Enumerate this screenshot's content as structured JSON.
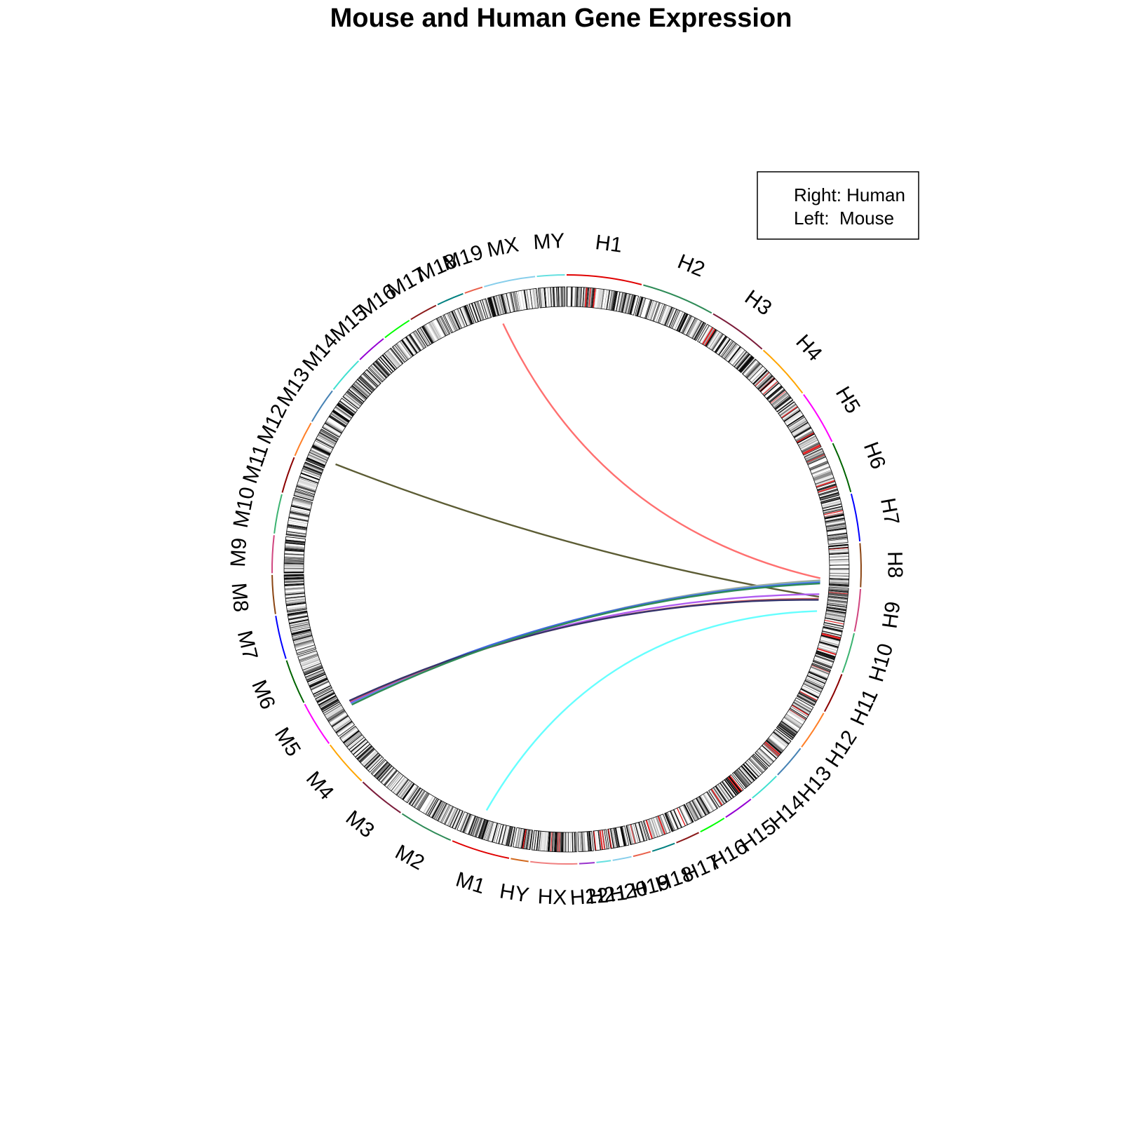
{
  "chart_data": {
    "type": "circos",
    "title": "Mouse and Human Gene Expression",
    "legend": {
      "placement": "top-right",
      "entries": [
        "Right: Human",
        "Left:  Mouse"
      ]
    },
    "segment_order_clockwise_from_top": [
      "H1",
      "H2",
      "H3",
      "H4",
      "H5",
      "H6",
      "H7",
      "H8",
      "H9",
      "H10",
      "H11",
      "H12",
      "H13",
      "H14",
      "H15",
      "H16",
      "H17",
      "H18",
      "H19",
      "H20",
      "H21",
      "H22",
      "HX",
      "HY",
      "M1",
      "M2",
      "M3",
      "M4",
      "M5",
      "M6",
      "M7",
      "M8",
      "M9",
      "M10",
      "M11",
      "M12",
      "M13",
      "M14",
      "M15",
      "M16",
      "M17",
      "M18",
      "M19",
      "MX",
      "MY"
    ],
    "segments": [
      {
        "name": "H1",
        "size": 249,
        "color": "#e00000"
      },
      {
        "name": "H2",
        "size": 243,
        "color": "#2e8b57"
      },
      {
        "name": "H3",
        "size": 198,
        "color": "#7b1c3a"
      },
      {
        "name": "H4",
        "size": 191,
        "color": "#ffa500"
      },
      {
        "name": "H5",
        "size": 181,
        "color": "#ff00ff"
      },
      {
        "name": "H6",
        "size": 171,
        "color": "#006400"
      },
      {
        "name": "H7",
        "size": 159,
        "color": "#0000ff"
      },
      {
        "name": "H8",
        "size": 145,
        "color": "#8b4513"
      },
      {
        "name": "H9",
        "size": 141,
        "color": "#d0457f"
      },
      {
        "name": "H10",
        "size": 135,
        "color": "#3cb371"
      },
      {
        "name": "H11",
        "size": 135,
        "color": "#8b0000"
      },
      {
        "name": "H12",
        "size": 133,
        "color": "#ff7f27"
      },
      {
        "name": "H13",
        "size": 115,
        "color": "#4682b4"
      },
      {
        "name": "H14",
        "size": 107,
        "color": "#40e0d0"
      },
      {
        "name": "H15",
        "size": 102,
        "color": "#9400d3"
      },
      {
        "name": "H16",
        "size": 90,
        "color": "#00ff00"
      },
      {
        "name": "H17",
        "size": 81,
        "color": "#8b1a1a"
      },
      {
        "name": "H18",
        "size": 78,
        "color": "#008080"
      },
      {
        "name": "H19",
        "size": 59,
        "color": "#e9604a"
      },
      {
        "name": "H20",
        "size": 63,
        "color": "#87ceeb"
      },
      {
        "name": "H21",
        "size": 48,
        "color": "#66e0e0"
      },
      {
        "name": "H22",
        "size": 51,
        "color": "#9932cc"
      },
      {
        "name": "HX",
        "size": 155,
        "color": "#f08080"
      },
      {
        "name": "HY",
        "size": 59,
        "color": "#d2691e"
      },
      {
        "name": "M1",
        "size": 195,
        "color": "#e00000"
      },
      {
        "name": "M2",
        "size": 182,
        "color": "#2e8b57"
      },
      {
        "name": "M3",
        "size": 160,
        "color": "#7b1c3a"
      },
      {
        "name": "M4",
        "size": 157,
        "color": "#ffa500"
      },
      {
        "name": "M5",
        "size": 152,
        "color": "#ff00ff"
      },
      {
        "name": "M6",
        "size": 150,
        "color": "#006400"
      },
      {
        "name": "M7",
        "size": 145,
        "color": "#0000ff"
      },
      {
        "name": "M8",
        "size": 129,
        "color": "#8b4513"
      },
      {
        "name": "M9",
        "size": 125,
        "color": "#d0457f"
      },
      {
        "name": "M10",
        "size": 131,
        "color": "#3cb371"
      },
      {
        "name": "M11",
        "size": 122,
        "color": "#8b0000"
      },
      {
        "name": "M12",
        "size": 120,
        "color": "#ff7f27"
      },
      {
        "name": "M13",
        "size": 121,
        "color": "#4682b4"
      },
      {
        "name": "M14",
        "size": 125,
        "color": "#40e0d0"
      },
      {
        "name": "M15",
        "size": 104,
        "color": "#9400d3"
      },
      {
        "name": "M16",
        "size": 98,
        "color": "#00ff00"
      },
      {
        "name": "M17",
        "size": 95,
        "color": "#8b1a1a"
      },
      {
        "name": "M18",
        "size": 91,
        "color": "#008080"
      },
      {
        "name": "M19",
        "size": 61,
        "color": "#e9604a"
      },
      {
        "name": "MX",
        "size": 171,
        "color": "#87ceeb"
      },
      {
        "name": "MY",
        "size": 92,
        "color": "#66e0e0"
      }
    ],
    "links": [
      {
        "from": {
          "chr": "MX",
          "pos": 30
        },
        "to": {
          "chr": "H8",
          "pos": 120
        },
        "color": "#ff7070"
      },
      {
        "from": {
          "chr": "M12",
          "pos": 30
        },
        "to": {
          "chr": "H9",
          "pos": 40
        },
        "color": "#5c5c34"
      },
      {
        "from": {
          "chr": "M1",
          "pos": 120
        },
        "to": {
          "chr": "H9",
          "pos": 95
        },
        "color": "#66ffff"
      },
      {
        "from": {
          "chr": "M5",
          "pos": 70
        },
        "to": {
          "chr": "H8",
          "pos": 128
        },
        "color": "#a0a0a0"
      },
      {
        "from": {
          "chr": "M5",
          "pos": 72
        },
        "to": {
          "chr": "H8",
          "pos": 131
        },
        "color": "#8fbc8f"
      },
      {
        "from": {
          "chr": "M5",
          "pos": 75
        },
        "to": {
          "chr": "H8",
          "pos": 134
        },
        "color": "#6495ed"
      },
      {
        "from": {
          "chr": "M5",
          "pos": 78
        },
        "to": {
          "chr": "H8",
          "pos": 137
        },
        "color": "#4169e1"
      },
      {
        "from": {
          "chr": "M5",
          "pos": 80
        },
        "to": {
          "chr": "H9",
          "pos": 30
        },
        "color": "#b05cf0"
      },
      {
        "from": {
          "chr": "M5",
          "pos": 83
        },
        "to": {
          "chr": "H9",
          "pos": 48
        },
        "color": "#cd5c5c"
      },
      {
        "from": {
          "chr": "M5",
          "pos": 86
        },
        "to": {
          "chr": "H9",
          "pos": 52
        },
        "color": "#34346c"
      },
      {
        "from": {
          "chr": "M5",
          "pos": 68
        },
        "to": {
          "chr": "H8",
          "pos": 140
        },
        "color": "#2e8b57"
      }
    ]
  }
}
